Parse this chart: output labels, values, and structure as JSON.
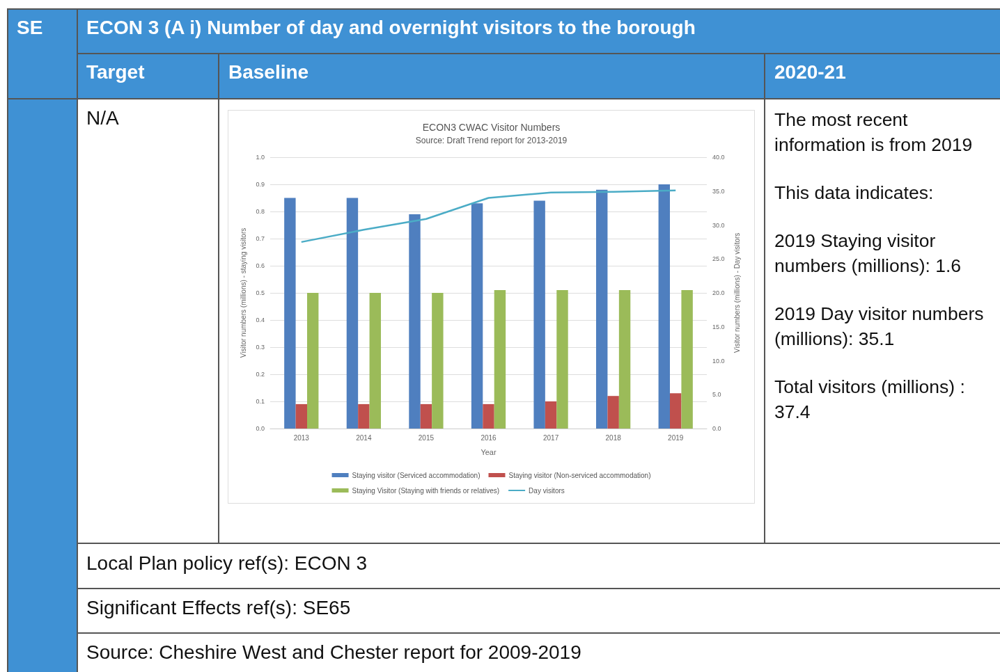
{
  "chart_data": {
    "type": "bar",
    "title": "ECON3 CWAC Visitor Numbers",
    "subtitle": "Source: Draft Trend report for 2013-2019",
    "xlabel": "Year",
    "ylabel": "Visitor numbers (millions) - staying visitors",
    "y2label": "Visitor numbers (millions) - Day visitors",
    "categories": [
      "2013",
      "2014",
      "2015",
      "2016",
      "2017",
      "2018",
      "2019"
    ],
    "series": [
      {
        "name": "Staying visitor (Serviced accommodation)",
        "color": "#4f7fbf",
        "values": [
          0.85,
          0.85,
          0.79,
          0.83,
          0.84,
          0.88,
          0.9
        ]
      },
      {
        "name": "Staying visitor (Non-serviced accommodation)",
        "color": "#c0504d",
        "values": [
          0.09,
          0.09,
          0.09,
          0.09,
          0.1,
          0.12,
          0.13
        ]
      },
      {
        "name": "Staying Visitor (Staying with friends or relatives)",
        "color": "#9bbb59",
        "values": [
          0.5,
          0.5,
          0.5,
          0.51,
          0.51,
          0.51,
          0.51
        ]
      },
      {
        "name": "Day visitors",
        "color": "#4bacc6",
        "type": "line",
        "axis": "y2",
        "values": [
          27.5,
          29.3,
          30.9,
          34.0,
          34.8,
          34.9,
          35.1
        ]
      }
    ],
    "ylim": [
      0,
      1
    ],
    "yticks": [
      {
        "value": 0,
        "label": "0.0"
      },
      0.1,
      0.2,
      0.3,
      0.4,
      0.5,
      0.6,
      0.7,
      0.8,
      0.9,
      {
        "value": 1,
        "label": "1.0"
      }
    ],
    "y2lim": [
      0,
      40
    ],
    "y2ticks": [
      {
        "value": 0,
        "label": "0.0"
      },
      {
        "value": 5,
        "label": "5.0"
      },
      {
        "value": 10,
        "label": "10.0"
      },
      {
        "value": 15,
        "label": "15.0"
      },
      {
        "value": 20,
        "label": "20.0"
      },
      {
        "value": 25,
        "label": "25.0"
      },
      {
        "value": 30,
        "label": "30.0"
      },
      {
        "value": 35,
        "label": "35.0"
      },
      {
        "value": 40,
        "label": "40.0"
      }
    ],
    "grid": "y",
    "legend": "bottom",
    "marker": "none",
    "annotations": [
      "SE",
      "ECON 3 (A i) Number of day and overnight visitors to the borough",
      "Target",
      "Baseline",
      "2020-21",
      "N/A",
      "The most recent information is from 2019",
      "This data indicates:",
      "2019 Staying visitor numbers (millions): 1.6",
      "2019 Day visitor numbers (millions): 35.1",
      "Total visitors (millions) : 37.4",
      "Local Plan policy ref(s): ECON 3",
      "Significant Effects ref(s): SE65",
      "Source: Cheshire West and Chester report for 2009-2019"
    ]
  }
}
